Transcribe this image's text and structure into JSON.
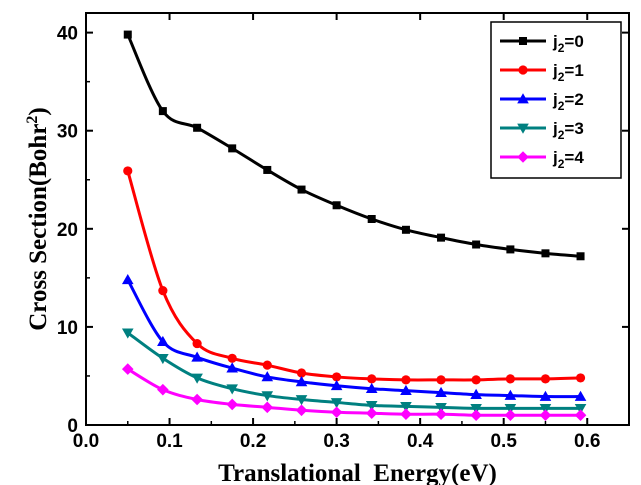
{
  "chart_data": {
    "type": "line",
    "title": "",
    "xlabel": "Translational  Energy(eV)",
    "ylabel": "Cross Section(Bohr",
    "ylabel_sup": "2",
    "ylabel_close": ")",
    "xlim": [
      0.0,
      0.65
    ],
    "ylim": [
      0,
      42
    ],
    "x_ticks": [
      "0.0",
      "0.1",
      "0.2",
      "0.3",
      "0.4",
      "0.5",
      "0.6"
    ],
    "y_ticks": [
      "0",
      "10",
      "20",
      "30",
      "40"
    ],
    "legend_position": "top-right",
    "x": [
      0.05,
      0.092,
      0.133,
      0.175,
      0.217,
      0.258,
      0.3,
      0.342,
      0.383,
      0.425,
      0.467,
      0.508,
      0.55,
      0.592
    ],
    "series": [
      {
        "name": "j2=0",
        "name_main": "j",
        "name_sub": "2",
        "name_tail": "=0",
        "color": "#000000",
        "marker": "square",
        "values": [
          39.8,
          32.0,
          30.3,
          28.2,
          26.0,
          24.0,
          22.4,
          21.0,
          19.9,
          19.1,
          18.4,
          17.9,
          17.5,
          17.2
        ]
      },
      {
        "name": "j2=1",
        "name_main": "j",
        "name_sub": "2",
        "name_tail": "=1",
        "color": "#ff0000",
        "marker": "circle",
        "values": [
          25.9,
          13.7,
          8.3,
          6.8,
          6.1,
          5.3,
          4.9,
          4.7,
          4.6,
          4.6,
          4.6,
          4.7,
          4.7,
          4.8
        ]
      },
      {
        "name": "j2=2",
        "name_main": "j",
        "name_sub": "2",
        "name_tail": "=2",
        "color": "#0000ff",
        "marker": "triangle-up",
        "values": [
          14.8,
          8.5,
          6.9,
          5.8,
          4.9,
          4.4,
          4.0,
          3.7,
          3.5,
          3.3,
          3.1,
          3.0,
          2.9,
          2.9
        ]
      },
      {
        "name": "j2=3",
        "name_main": "j",
        "name_sub": "2",
        "name_tail": "=3",
        "color": "#008080",
        "marker": "triangle-down",
        "values": [
          9.4,
          6.8,
          4.8,
          3.7,
          3.0,
          2.6,
          2.3,
          2.0,
          1.9,
          1.8,
          1.7,
          1.7,
          1.7,
          1.7
        ]
      },
      {
        "name": "j2=4",
        "name_main": "j",
        "name_sub": "2",
        "name_tail": "=4",
        "color": "#ff00ff",
        "marker": "diamond",
        "values": [
          5.7,
          3.6,
          2.6,
          2.1,
          1.8,
          1.5,
          1.3,
          1.2,
          1.1,
          1.1,
          1.0,
          1.0,
          1.0,
          1.0
        ]
      }
    ]
  }
}
